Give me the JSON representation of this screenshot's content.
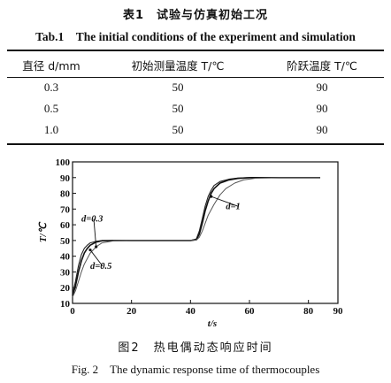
{
  "table": {
    "title_cn": "表1　试验与仿真初始工况",
    "title_en": "Tab.1　The initial conditions of the experiment and simulation",
    "headers": [
      "直径 d/mm",
      "初始测量温度 T/℃",
      "阶跃温度 T/℃"
    ],
    "rows": [
      [
        "0.3",
        "50",
        "90"
      ],
      [
        "0.5",
        "50",
        "90"
      ],
      [
        "1.0",
        "50",
        "90"
      ]
    ]
  },
  "figure": {
    "caption_cn": "图2　热电偶动态响应时间",
    "caption_en": "Fig. 2　The dynamic response time of thermocouples"
  },
  "chart_data": {
    "type": "line",
    "title": "",
    "xlabel": "t/s",
    "ylabel": "T/℃",
    "xlim": [
      0,
      90
    ],
    "ylim": [
      10,
      100
    ],
    "xticks": [
      0,
      20,
      40,
      60,
      80,
      90
    ],
    "yticks": [
      10,
      20,
      30,
      40,
      50,
      60,
      70,
      80,
      90,
      100
    ],
    "grid": false,
    "series": [
      {
        "name": "d=0.3",
        "label": "d=0.3",
        "x": [
          0,
          1,
          2,
          3,
          4,
          5,
          6,
          8,
          10,
          14,
          20,
          30,
          40,
          42,
          43,
          44,
          45,
          46,
          47,
          48,
          50,
          53,
          56,
          60,
          70,
          80,
          84
        ],
        "y": [
          16,
          24,
          34,
          41,
          45,
          47,
          48.5,
          49.5,
          50,
          50,
          50,
          50,
          50,
          51,
          56,
          64,
          72,
          78,
          82,
          85,
          87.5,
          89,
          89.7,
          90,
          90,
          90,
          90
        ]
      },
      {
        "name": "d=0.5",
        "label": "d=0.5",
        "x": [
          0,
          1,
          2,
          3,
          4,
          5,
          6,
          8,
          10,
          14,
          20,
          30,
          40,
          42,
          43,
          44,
          45,
          46,
          47,
          48,
          50,
          53,
          56,
          60,
          70,
          80,
          84
        ],
        "y": [
          15,
          21,
          30,
          37,
          42,
          45,
          47,
          49,
          49.8,
          50,
          50,
          50,
          50,
          50.5,
          54,
          61,
          69,
          75,
          80,
          83,
          86.5,
          88.5,
          89.5,
          90,
          90,
          90,
          90
        ]
      },
      {
        "name": "d=1",
        "label": "d=1",
        "x": [
          0,
          1,
          2,
          3,
          4,
          6,
          8,
          10,
          14,
          20,
          30,
          40,
          42,
          43,
          44,
          45,
          46,
          48,
          50,
          52,
          55,
          58,
          62,
          70,
          80,
          84
        ],
        "y": [
          14,
          18,
          24,
          30,
          35,
          42,
          46,
          48.5,
          49.8,
          50,
          50,
          50,
          50.3,
          52,
          56,
          61,
          66,
          73,
          79,
          83,
          86.5,
          88.5,
          89.6,
          90,
          90,
          90
        ]
      }
    ],
    "annotations": [
      {
        "text": "d=0.3",
        "x": 3,
        "y": 62
      },
      {
        "text": "d=0.5",
        "x": 6,
        "y": 32
      },
      {
        "text": "d=1",
        "x": 52,
        "y": 70
      }
    ]
  }
}
